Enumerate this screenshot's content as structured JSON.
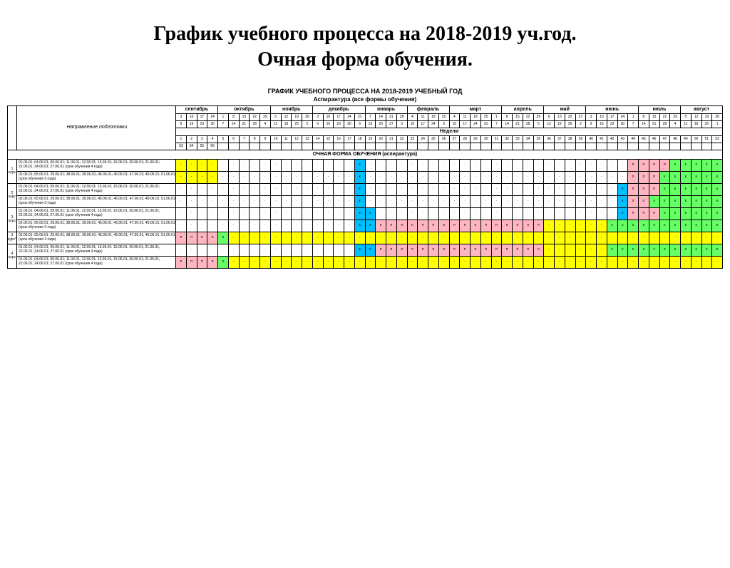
{
  "page_title_l1": "График учебного процесса на 2018-2019 уч.год.",
  "page_title_l2": "Очная форма обучения.",
  "doc_title": "ГРАФИК УЧЕБНОГО ПРОЦЕССА НА 2018-2019 УЧЕБНЫЙ ГОД",
  "doc_sub": "Аспирантура (все формы обучения)",
  "col_course": "курс",
  "col_direction": "Направление подготовки",
  "weeks_label": "Недели",
  "section_header": "ОЧНАЯ ФОРМА ОБУЧЕНИЯ (аспирантура)",
  "months": [
    "сентябрь",
    "октябрь",
    "ноябрь",
    "декабрь",
    "январь",
    "февраль",
    "март",
    "апрель",
    "май",
    "июнь",
    "июль",
    "август"
  ],
  "month_spans": [
    4,
    5,
    4,
    5,
    4,
    4,
    5,
    4,
    4,
    5,
    4,
    4
  ],
  "date_row1": [
    "3",
    "10",
    "17",
    "24",
    "1",
    "8",
    "15",
    "22",
    "29",
    "5",
    "12",
    "19",
    "26",
    "3",
    "10",
    "17",
    "24",
    "31",
    "7",
    "14",
    "21",
    "28",
    "4",
    "11",
    "18",
    "25",
    "4",
    "11",
    "18",
    "25",
    "1",
    "8",
    "15",
    "22",
    "29",
    "6",
    "13",
    "20",
    "27",
    "3",
    "10",
    "17",
    "24",
    "1",
    "8",
    "15",
    "22",
    "29",
    "5",
    "12",
    "19",
    "26"
  ],
  "date_row2": [
    "9",
    "16",
    "23",
    "30",
    "7",
    "14",
    "21",
    "28",
    "4",
    "11",
    "18",
    "25",
    "2",
    "9",
    "16",
    "23",
    "30",
    "6",
    "13",
    "20",
    "27",
    "3",
    "10",
    "17",
    "24",
    "3",
    "10",
    "17",
    "24",
    "31",
    "7",
    "14",
    "21",
    "28",
    "5",
    "12",
    "19",
    "26",
    "2",
    "9",
    "16",
    "23",
    "30",
    "7",
    "14",
    "21",
    "28",
    "4",
    "11",
    "18",
    "25",
    "1"
  ],
  "week_nums1": [
    "1",
    "2",
    "3",
    "4",
    "5",
    "6",
    "7",
    "8",
    "9",
    "10",
    "11",
    "12",
    "13",
    "14",
    "15",
    "16",
    "17",
    "18",
    "19",
    "20",
    "21",
    "22",
    "23",
    "24",
    "25",
    "26",
    "27",
    "28",
    "29",
    "30",
    "31",
    "32",
    "33",
    "34",
    "35",
    "36",
    "37",
    "38",
    "39",
    "40",
    "41",
    "42",
    "43",
    "44",
    "45",
    "46",
    "47",
    "48",
    "49",
    "50",
    "51",
    "52"
  ],
  "week_nums2": [
    "1",
    "2",
    "3",
    "4",
    "5",
    "6",
    "7",
    "8",
    "1",
    "2",
    "3",
    "4",
    "1",
    "2",
    "3",
    "4",
    "1",
    "2",
    "3",
    "4",
    "1",
    "2",
    "3",
    "4",
    "1",
    "2",
    "3",
    "4",
    "1",
    "2",
    "3",
    "4",
    "1",
    "2",
    "3",
    "4",
    "1",
    "2",
    "3",
    "4",
    "1",
    "2",
    "3",
    "4",
    "1",
    "2",
    "3",
    "4",
    "1",
    "2",
    "3",
    "4"
  ],
  "week_nums3": [
    "53",
    "54",
    "55",
    "56",
    "",
    "",
    "",
    "",
    "",
    "",
    "",
    "",
    "",
    "",
    "",
    "",
    "",
    "",
    "",
    "",
    "",
    "",
    "",
    "",
    "",
    "",
    "",
    "",
    "",
    "",
    "",
    "",
    "",
    "",
    "",
    "",
    "",
    "",
    "",
    "",
    "",
    "",
    "",
    "",
    "",
    "",
    "",
    "",
    "",
    "",
    "",
    ""
  ],
  "courses": [
    {
      "label": "1 курс",
      "rows": [
        {
          "name": "01.06.01; 04.06.01; 09.06.01; 11.06.01; 12.06.01; 13.06.01; 15.06.01; 20.06.01; 21.06.01; 22.06.01; 24.06.01; 27.06.01 (срок обучения 4 года)",
          "cells": [
            "y",
            "y",
            "y",
            "y",
            "w",
            "w",
            "w",
            "w",
            "w",
            "w",
            "w",
            "w",
            "w",
            "w",
            "w",
            "w",
            "w",
            "c",
            "w",
            "w",
            "w",
            "w",
            "w",
            "w",
            "w",
            "w",
            "w",
            "w",
            "w",
            "w",
            "w",
            "w",
            "w",
            "w",
            "w",
            "w",
            "w",
            "w",
            "w",
            "w",
            "w",
            "w",
            "w",
            "p",
            "p",
            "p",
            "p",
            "g",
            "g",
            "g",
            "g",
            "g"
          ]
        },
        {
          "name": "02.06.01; 05.06.01; 29.06.01; 38.06.01; 39.06.01; 45.06.01; 46.06.01; 47.06.01; 49.06.01; 51.06.01 (срок обучения 3 года)",
          "cells": [
            "y",
            "y",
            "y",
            "y",
            "w",
            "w",
            "w",
            "w",
            "w",
            "w",
            "w",
            "w",
            "w",
            "w",
            "w",
            "w",
            "w",
            "c",
            "w",
            "w",
            "w",
            "w",
            "w",
            "w",
            "w",
            "w",
            "w",
            "w",
            "w",
            "w",
            "w",
            "w",
            "w",
            "w",
            "w",
            "w",
            "w",
            "w",
            "w",
            "w",
            "w",
            "w",
            "w",
            "p",
            "p",
            "p",
            "g",
            "g",
            "g",
            "g",
            "g",
            "g"
          ]
        }
      ]
    },
    {
      "label": "2 курс",
      "rows": [
        {
          "name": "01.06.01; 04.06.01; 09.06.01; 11.06.01; 12.06.01; 13.06.01; 15.06.01; 20.06.01; 21.06.01; 22.06.01; 24.06.01; 27.06.01 (срок обучения 4 года)",
          "cells": [
            "w",
            "w",
            "w",
            "w",
            "w",
            "w",
            "w",
            "w",
            "w",
            "w",
            "w",
            "w",
            "w",
            "w",
            "w",
            "w",
            "w",
            "c",
            "w",
            "w",
            "w",
            "w",
            "w",
            "w",
            "w",
            "w",
            "w",
            "w",
            "w",
            "w",
            "w",
            "w",
            "w",
            "w",
            "w",
            "w",
            "w",
            "w",
            "w",
            "w",
            "w",
            "w",
            "c",
            "p",
            "p",
            "p",
            "g",
            "g",
            "g",
            "g",
            "g",
            "g"
          ]
        },
        {
          "name": "02.06.01; 05.06.01; 29.06.01; 38.06.01; 39.06.01; 45.06.01; 46.06.01; 47.06.01; 49.06.01; 51.06.01 (срок обучения 3 года)",
          "cells": [
            "w",
            "w",
            "w",
            "w",
            "w",
            "w",
            "w",
            "w",
            "w",
            "w",
            "w",
            "w",
            "w",
            "w",
            "w",
            "w",
            "w",
            "c",
            "w",
            "w",
            "w",
            "w",
            "w",
            "w",
            "w",
            "w",
            "w",
            "w",
            "w",
            "w",
            "w",
            "w",
            "w",
            "w",
            "w",
            "w",
            "w",
            "w",
            "w",
            "w",
            "w",
            "w",
            "c",
            "p",
            "p",
            "g",
            "g",
            "g",
            "g",
            "g",
            "g",
            "g"
          ]
        }
      ]
    },
    {
      "label": "3 курс",
      "rows": [
        {
          "name": "01.06.01; 04.06.01; 09.06.01; 11.06.01; 12.06.01; 13.06.01; 15.06.01; 20.06.01; 21.06.01; 22.06.01; 24.06.01; 27.06.01 (срок обучения 4 года)",
          "cells": [
            "w",
            "w",
            "w",
            "w",
            "w",
            "w",
            "w",
            "w",
            "w",
            "w",
            "w",
            "w",
            "w",
            "w",
            "w",
            "w",
            "w",
            "c",
            "c",
            "w",
            "w",
            "w",
            "w",
            "w",
            "w",
            "w",
            "w",
            "w",
            "w",
            "w",
            "w",
            "w",
            "w",
            "w",
            "w",
            "w",
            "w",
            "w",
            "w",
            "w",
            "w",
            "w",
            "c",
            "p",
            "p",
            "p",
            "g",
            "g",
            "g",
            "g",
            "g",
            "g"
          ]
        },
        {
          "name": "02.06.01; 05.06.01; 29.06.01; 38.06.01; 39.06.01; 45.06.01; 46.06.01; 47.06.01; 49.06.01; 51.06.01 (срок обучения 3 года)",
          "cells": [
            "w",
            "w",
            "w",
            "w",
            "w",
            "w",
            "w",
            "w",
            "w",
            "w",
            "w",
            "w",
            "w",
            "w",
            "w",
            "w",
            "w",
            "c",
            "c",
            "p",
            "p",
            "p",
            "p",
            "p",
            "p",
            "p",
            "p",
            "p",
            "p",
            "p",
            "p",
            "p",
            "p",
            "p",
            "p",
            "y",
            "y",
            "y",
            "y",
            "y",
            "y",
            "g",
            "g",
            "g",
            "g",
            "g",
            "g",
            "g",
            "g",
            "g",
            "g",
            "g"
          ]
        }
      ]
    },
    {
      "label": "3 курс*",
      "rows": [
        {
          "name": "02.06.01; 05.06.01; 29.06.01; 38.06.01; 39.06.01; 45.06.01; 46.06.01; 47.06.01; 49.06.01; 51.06.01 (срок обучения 3 года)",
          "cells": [
            "p",
            "p",
            "p",
            "p",
            "g",
            "y",
            "y",
            "y",
            "y",
            "y",
            "y",
            "y",
            "y",
            "y",
            "y",
            "y",
            "y",
            "y",
            "y",
            "y",
            "y",
            "y",
            "y",
            "y",
            "y",
            "y",
            "y",
            "y",
            "y",
            "y",
            "y",
            "y",
            "y",
            "y",
            "y",
            "y",
            "y",
            "y",
            "y",
            "y",
            "y",
            "y",
            "y",
            "y",
            "y",
            "y",
            "y",
            "y",
            "y",
            "y",
            "y",
            "y"
          ]
        }
      ]
    },
    {
      "label": "4 курс",
      "rows": [
        {
          "name": "01.06.01; 04.06.01; 09.06.01; 11.06.01; 12.06.01; 13.06.01; 15.06.01; 20.06.01; 21.06.01; 22.06.01; 24.06.01; 27.06.01 (срок обучения 4 года)",
          "cells": [
            "w",
            "w",
            "w",
            "w",
            "w",
            "w",
            "w",
            "w",
            "w",
            "w",
            "w",
            "w",
            "w",
            "w",
            "w",
            "w",
            "w",
            "c",
            "c",
            "p",
            "p",
            "p",
            "p",
            "p",
            "p",
            "p",
            "p",
            "p",
            "p",
            "p",
            "p",
            "p",
            "p",
            "p",
            "p",
            "y",
            "y",
            "y",
            "y",
            "y",
            "y",
            "g",
            "g",
            "g",
            "g",
            "g",
            "g",
            "g",
            "g",
            "g",
            "g",
            "g"
          ]
        },
        {
          "name": "01.06.01; 04.06.01; 09.06.01; 11.06.01; 12.06.01; 13.06.01; 15.06.01; 20.06.01; 21.06.01; 22.06.01; 24.06.01; 27.06.01 (срок обучения 4 года)",
          "cells": [
            "p",
            "p",
            "p",
            "p",
            "g",
            "y",
            "y",
            "y",
            "y",
            "y",
            "y",
            "y",
            "y",
            "y",
            "y",
            "y",
            "y",
            "y",
            "y",
            "y",
            "y",
            "y",
            "y",
            "y",
            "y",
            "y",
            "y",
            "y",
            "y",
            "y",
            "y",
            "y",
            "y",
            "y",
            "y",
            "y",
            "y",
            "y",
            "y",
            "y",
            "y",
            "y",
            "y",
            "y",
            "y",
            "y",
            "y",
            "y",
            "y",
            "y",
            "y",
            "y"
          ]
        }
      ]
    }
  ],
  "colors": {
    "y": "#ffff00",
    "p": "#ffb6c1",
    "c": "#00bfff",
    "g": "#66ff66",
    "w": "#ffffff"
  },
  "cell_text": {
    "y": "-",
    "p": "п",
    "c": "к",
    "g": "к",
    "w": "·"
  }
}
